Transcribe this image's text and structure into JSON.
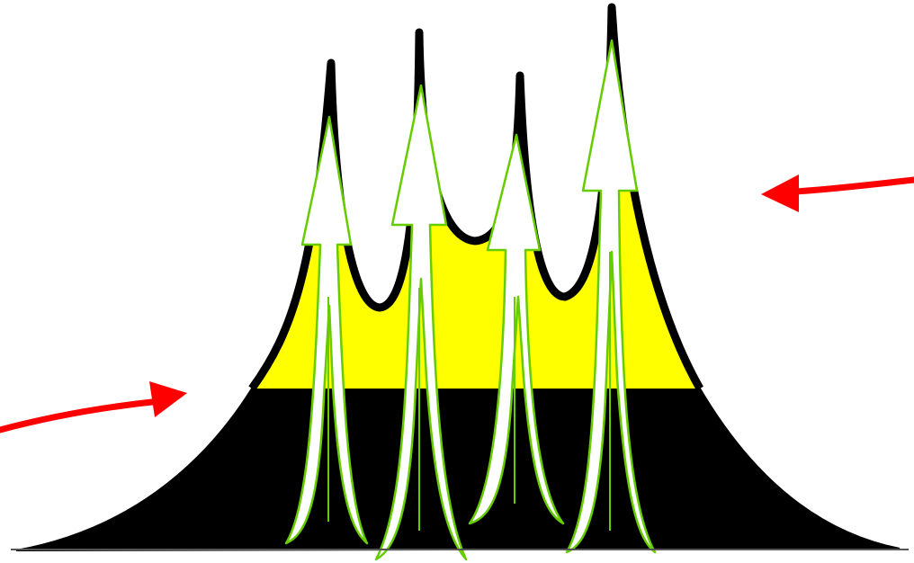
{
  "diagram": {
    "background": "#ffffff",
    "colors": {
      "upper_layer": "#ffff00",
      "lower_layer": "#000000",
      "outline": "#000000",
      "updraft_stroke": "#66cc00",
      "updraft_fill": "#ffffff",
      "inflow_arrow": "#ff0000"
    },
    "peaks": 4,
    "updraft_arrows": 4,
    "inflow_arrows": [
      {
        "side": "left",
        "direction": "toward-center"
      },
      {
        "side": "right",
        "direction": "toward-center"
      }
    ]
  }
}
